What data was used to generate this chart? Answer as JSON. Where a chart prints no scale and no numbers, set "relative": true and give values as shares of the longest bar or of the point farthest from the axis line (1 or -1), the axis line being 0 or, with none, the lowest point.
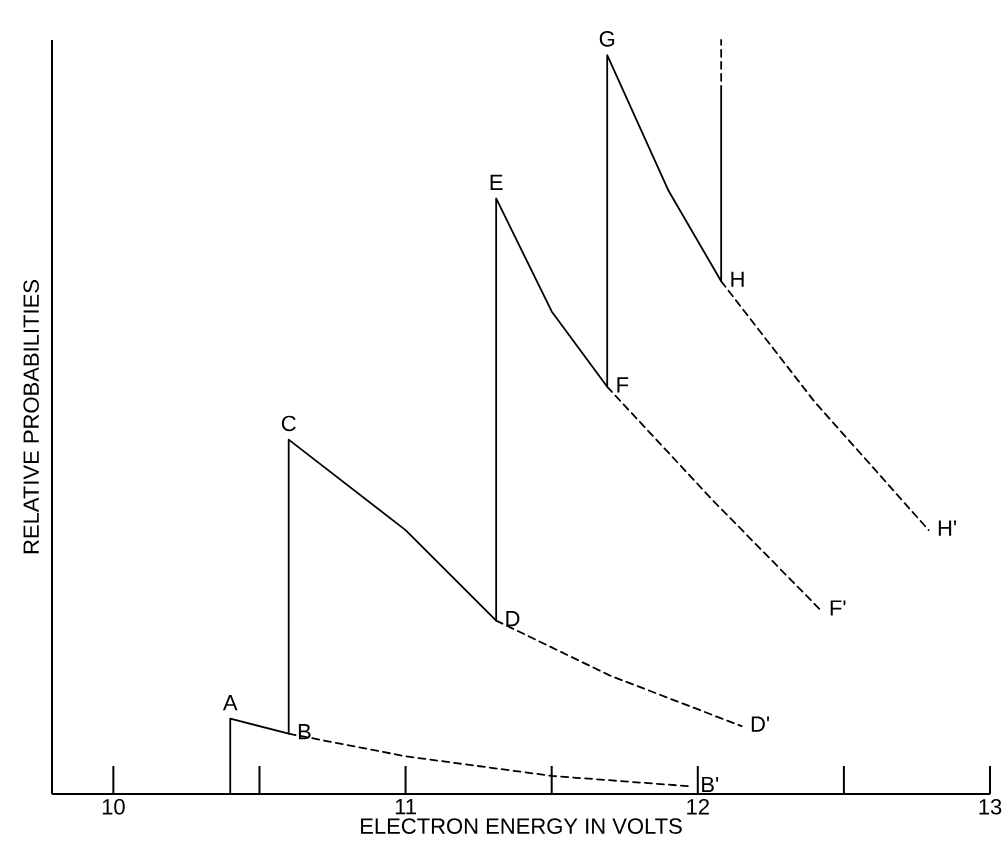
{
  "chart_data": {
    "type": "line",
    "relative": true,
    "xlabel": "ELECTRON ENERGY IN VOLTS",
    "ylabel": "RELATIVE PROBABILITIES",
    "xlim": [
      9.79,
      13
    ],
    "xticks": [
      10,
      {
        "value": 10.5,
        "label": null
      },
      11,
      {
        "value": 11.5,
        "label": null
      },
      12,
      {
        "value": 12.5,
        "label": null
      },
      13
    ],
    "series": [
      {
        "color": "#000000",
        "line_style": "solid",
        "x": [
          10.4,
          10.4,
          10.6,
          10.6,
          11.0,
          11.31,
          11.31,
          11.5,
          11.69,
          11.69,
          11.9,
          12.08,
          12.08
        ],
        "values": [
          0,
          0.1,
          0.08,
          0.47,
          0.35,
          0.23,
          0.79,
          0.64,
          0.54,
          0.98,
          0.8,
          0.68,
          0.93
        ]
      },
      {
        "color": "#000000",
        "line_style": "dashed",
        "x": [
          12.08,
          12.08
        ],
        "values": [
          0.93,
          1.0
        ]
      },
      {
        "color": "#000000",
        "line_style": "dashed",
        "x": [
          10.6,
          11.0,
          11.5,
          11.98
        ],
        "values": [
          0.08,
          0.05,
          0.024,
          0.01
        ]
      },
      {
        "color": "#000000",
        "line_style": "dashed",
        "x": [
          11.31,
          11.7,
          12.15
        ],
        "values": [
          0.23,
          0.157,
          0.09
        ]
      },
      {
        "color": "#000000",
        "line_style": "dashed",
        "x": [
          11.69,
          12.05,
          12.42
        ],
        "values": [
          0.54,
          0.39,
          0.244
        ]
      },
      {
        "color": "#000000",
        "line_style": "dashed",
        "x": [
          12.08,
          12.4,
          12.79
        ],
        "values": [
          0.68,
          0.52,
          0.35
        ]
      }
    ],
    "annotations": [
      {
        "text": "A",
        "x": 10.4,
        "y": 0.1
      },
      {
        "text": "B",
        "x": 10.6,
        "y": 0.08
      },
      {
        "text": "C",
        "x": 10.6,
        "y": 0.47
      },
      {
        "text": "D",
        "x": 11.31,
        "y": 0.23
      },
      {
        "text": "E",
        "x": 11.31,
        "y": 0.79
      },
      {
        "text": "F",
        "x": 11.69,
        "y": 0.54
      },
      {
        "text": "G",
        "x": 11.69,
        "y": 0.98
      },
      {
        "text": "H",
        "x": 12.08,
        "y": 0.68
      },
      {
        "text": "B'",
        "x": 11.98,
        "y": 0.01
      },
      {
        "text": "D'",
        "x": 12.15,
        "y": 0.09
      },
      {
        "text": "F'",
        "x": 12.42,
        "y": 0.244
      },
      {
        "text": "H'",
        "x": 12.79,
        "y": 0.35
      }
    ]
  }
}
